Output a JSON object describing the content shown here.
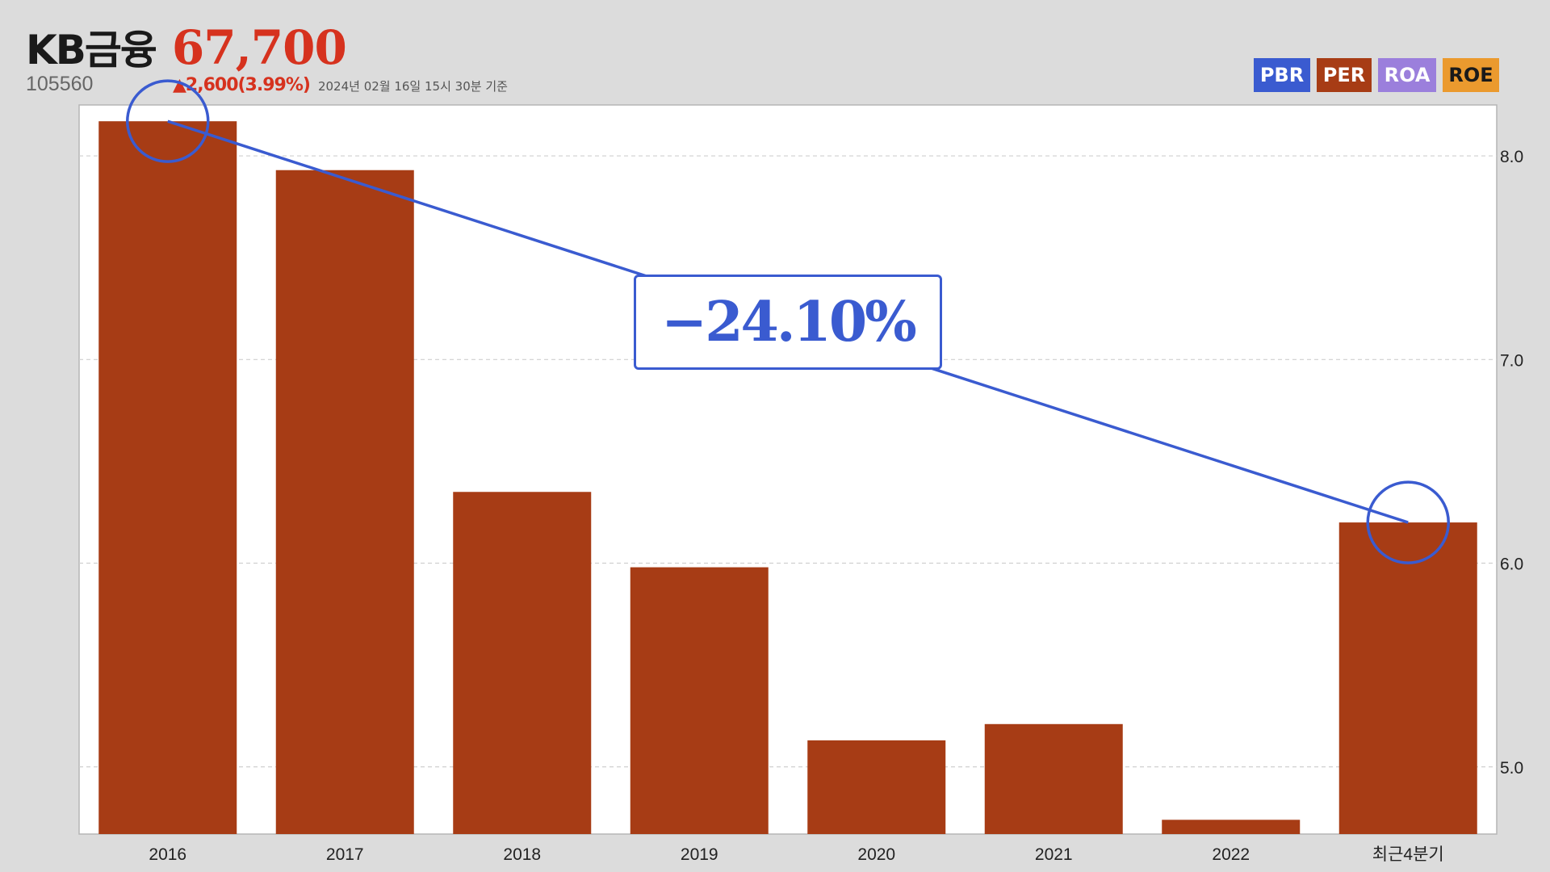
{
  "header": {
    "company": "KB금융",
    "price": "67,700",
    "code": "105560",
    "change": "▲2,600(3.99%)",
    "as_of": "2024년 02월 16일 15시 30분 기준"
  },
  "legend": [
    {
      "label": "PBR",
      "color": "#3a5bd0"
    },
    {
      "label": "PER",
      "color": "#a73c15"
    },
    {
      "label": "ROA",
      "color": "#9b7fdc"
    },
    {
      "label": "ROE",
      "color": "#eb9a2e"
    }
  ],
  "annotation": {
    "label": "−24.10%",
    "from_category": "2016",
    "to_category": "최근4분기",
    "color": "#3a5bd0"
  },
  "chart_data": {
    "type": "bar",
    "categories": [
      "2016",
      "2017",
      "2018",
      "2019",
      "2020",
      "2021",
      "2022",
      "최근4분기"
    ],
    "values": [
      8.17,
      7.93,
      6.35,
      5.98,
      5.13,
      5.21,
      4.74,
      6.2
    ],
    "ylim": [
      4.67,
      8.25
    ],
    "yticks": [
      "5.0",
      "6.0",
      "7.0",
      "8.0"
    ],
    "y_axis_position": "right",
    "grid": true,
    "bar_color": "#a73c15"
  }
}
